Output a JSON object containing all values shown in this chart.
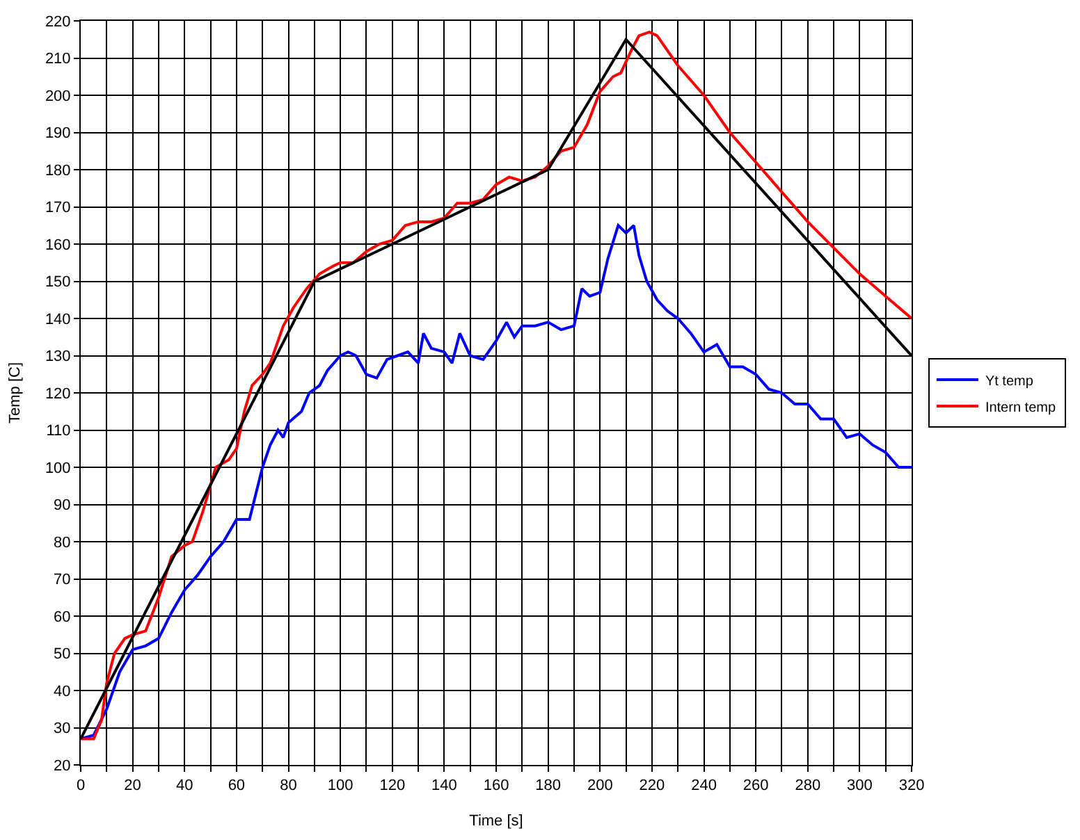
{
  "chart_data": {
    "type": "line",
    "xlabel": "Time [s]",
    "ylabel": "Temp [C]",
    "xlim": [
      0,
      320
    ],
    "ylim": [
      20,
      220
    ],
    "xticks": [
      0,
      {
        "value": 10,
        "label": null
      },
      20,
      {
        "value": 30,
        "label": null
      },
      40,
      {
        "value": 50,
        "label": null
      },
      60,
      {
        "value": 70,
        "label": null
      },
      80,
      {
        "value": 90,
        "label": null
      },
      100,
      {
        "value": 110,
        "label": null
      },
      120,
      {
        "value": 130,
        "label": null
      },
      140,
      {
        "value": 150,
        "label": null
      },
      160,
      {
        "value": 170,
        "label": null
      },
      180,
      {
        "value": 190,
        "label": null
      },
      200,
      {
        "value": 210,
        "label": null
      },
      220,
      {
        "value": 230,
        "label": null
      },
      240,
      {
        "value": 250,
        "label": null
      },
      260,
      {
        "value": 270,
        "label": null
      },
      280,
      {
        "value": 290,
        "label": null
      },
      300,
      {
        "value": 310,
        "label": null
      },
      320
    ],
    "yticks": [
      20,
      30,
      40,
      50,
      60,
      70,
      80,
      90,
      100,
      110,
      120,
      130,
      140,
      150,
      160,
      170,
      180,
      190,
      200,
      210,
      220
    ],
    "grid": true,
    "legend": "right",
    "marker": "none",
    "line_style": "solid",
    "series": [
      {
        "name": "Yt temp",
        "color": "#0000ff",
        "x": [
          0,
          5,
          10,
          15,
          20,
          25,
          30,
          35,
          40,
          45,
          50,
          55,
          60,
          65,
          70,
          73,
          76,
          78,
          80,
          85,
          88,
          92,
          95,
          100,
          103,
          106,
          110,
          114,
          118,
          122,
          126,
          130,
          132,
          135,
          140,
          143,
          146,
          150,
          155,
          160,
          164,
          167,
          170,
          175,
          180,
          185,
          190,
          193,
          196,
          200,
          203,
          207,
          210,
          213,
          215,
          218,
          222,
          226,
          230,
          235,
          240,
          245,
          250,
          255,
          260,
          265,
          270,
          275,
          280,
          285,
          290,
          295,
          300,
          305,
          310,
          315,
          320
        ],
        "values": [
          27,
          28,
          35,
          45,
          51,
          52,
          54,
          61,
          67,
          71,
          76,
          80,
          86,
          86,
          100,
          106,
          110,
          108,
          112,
          115,
          120,
          122,
          126,
          130,
          131,
          130,
          125,
          124,
          129,
          130,
          131,
          128,
          136,
          132,
          131,
          128,
          136,
          130,
          129,
          134,
          139,
          135,
          138,
          138,
          139,
          137,
          138,
          148,
          146,
          147,
          156,
          165,
          163,
          165,
          157,
          150,
          145,
          142,
          140,
          136,
          131,
          133,
          127,
          127,
          125,
          121,
          120,
          117,
          117,
          113,
          113,
          108,
          109,
          106,
          104,
          100,
          100
        ]
      },
      {
        "name": "Intern temp",
        "color": "#ff0000",
        "x": [
          0,
          5,
          8,
          10,
          13,
          17,
          20,
          25,
          30,
          35,
          40,
          43,
          47,
          52,
          57,
          60,
          63,
          66,
          70,
          73,
          78,
          82,
          87,
          92,
          97,
          100,
          105,
          110,
          115,
          120,
          125,
          130,
          135,
          140,
          145,
          150,
          155,
          160,
          165,
          170,
          175,
          180,
          185,
          190,
          195,
          200,
          205,
          208,
          212,
          215,
          219,
          222,
          226,
          230,
          240,
          250,
          260,
          270,
          280,
          290,
          300,
          310,
          320
        ],
        "values": [
          27,
          27,
          32,
          42,
          50,
          54,
          55,
          56,
          65,
          76,
          79,
          80,
          88,
          100,
          102,
          105,
          115,
          122,
          125,
          128,
          138,
          143,
          148,
          152,
          154,
          155,
          155,
          158,
          160,
          161,
          165,
          166,
          166,
          167,
          171,
          171,
          172,
          176,
          178,
          177,
          178,
          181,
          185,
          186,
          192,
          201,
          205,
          206,
          212,
          216,
          217,
          216,
          212,
          208,
          200,
          190,
          182,
          174,
          166,
          159,
          152,
          146,
          140
        ]
      },
      {
        "color": "#000000",
        "x": [
          0,
          90,
          180,
          210,
          320
        ],
        "values": [
          27,
          150,
          180,
          215,
          130
        ]
      }
    ]
  }
}
